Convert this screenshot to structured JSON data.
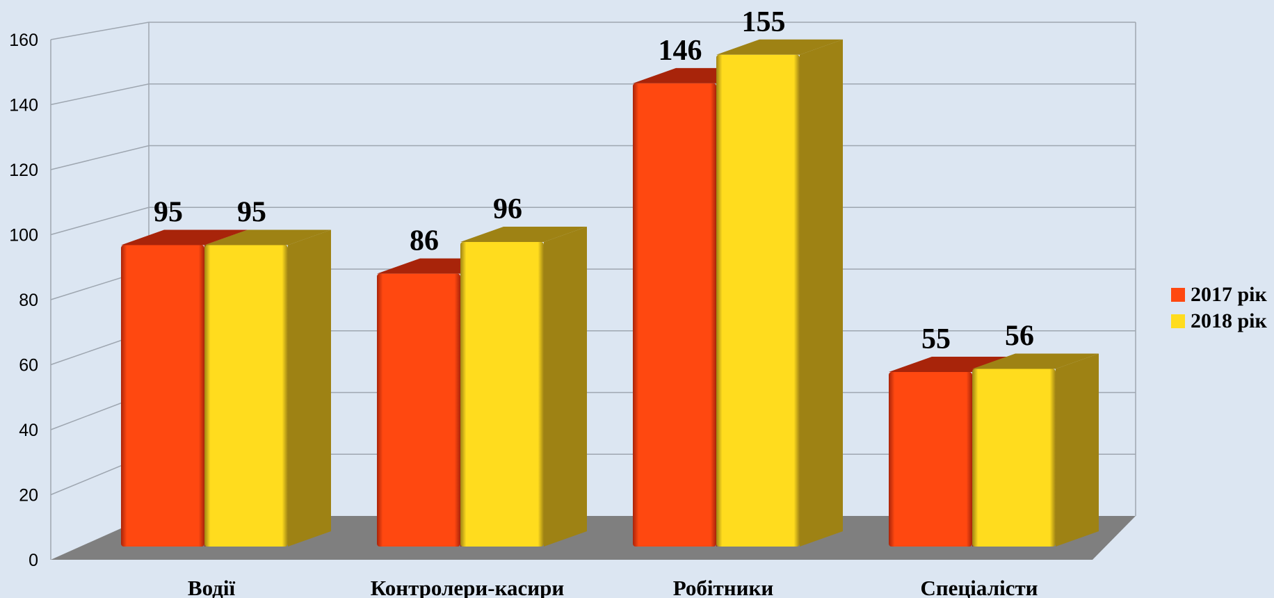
{
  "chart_data": {
    "type": "bar",
    "style": "3d-clustered-column",
    "categories": [
      "Водії",
      "Контролери-касири",
      "Робітники",
      "Спеціалісти"
    ],
    "series": [
      {
        "name": "2017 рік",
        "values": [
          95,
          86,
          146,
          55
        ],
        "color": "#ff4810",
        "top_color": "#a8240a",
        "side_color": "#a8240a"
      },
      {
        "name": "2018 рік",
        "values": [
          95,
          96,
          155,
          56
        ],
        "color": "#ffdc1e",
        "top_color": "#9e8214",
        "side_color": "#9e8214"
      }
    ],
    "yticks": [
      0,
      20,
      40,
      60,
      80,
      100,
      120,
      140,
      160
    ],
    "ylim": [
      0,
      160
    ],
    "grid": true,
    "legend_position": "right",
    "title": "",
    "xlabel": "",
    "ylabel": "",
    "colors": {
      "background": "#dce6f2",
      "floor": "#7f7f7f",
      "grid": "#9ea6b0"
    }
  }
}
